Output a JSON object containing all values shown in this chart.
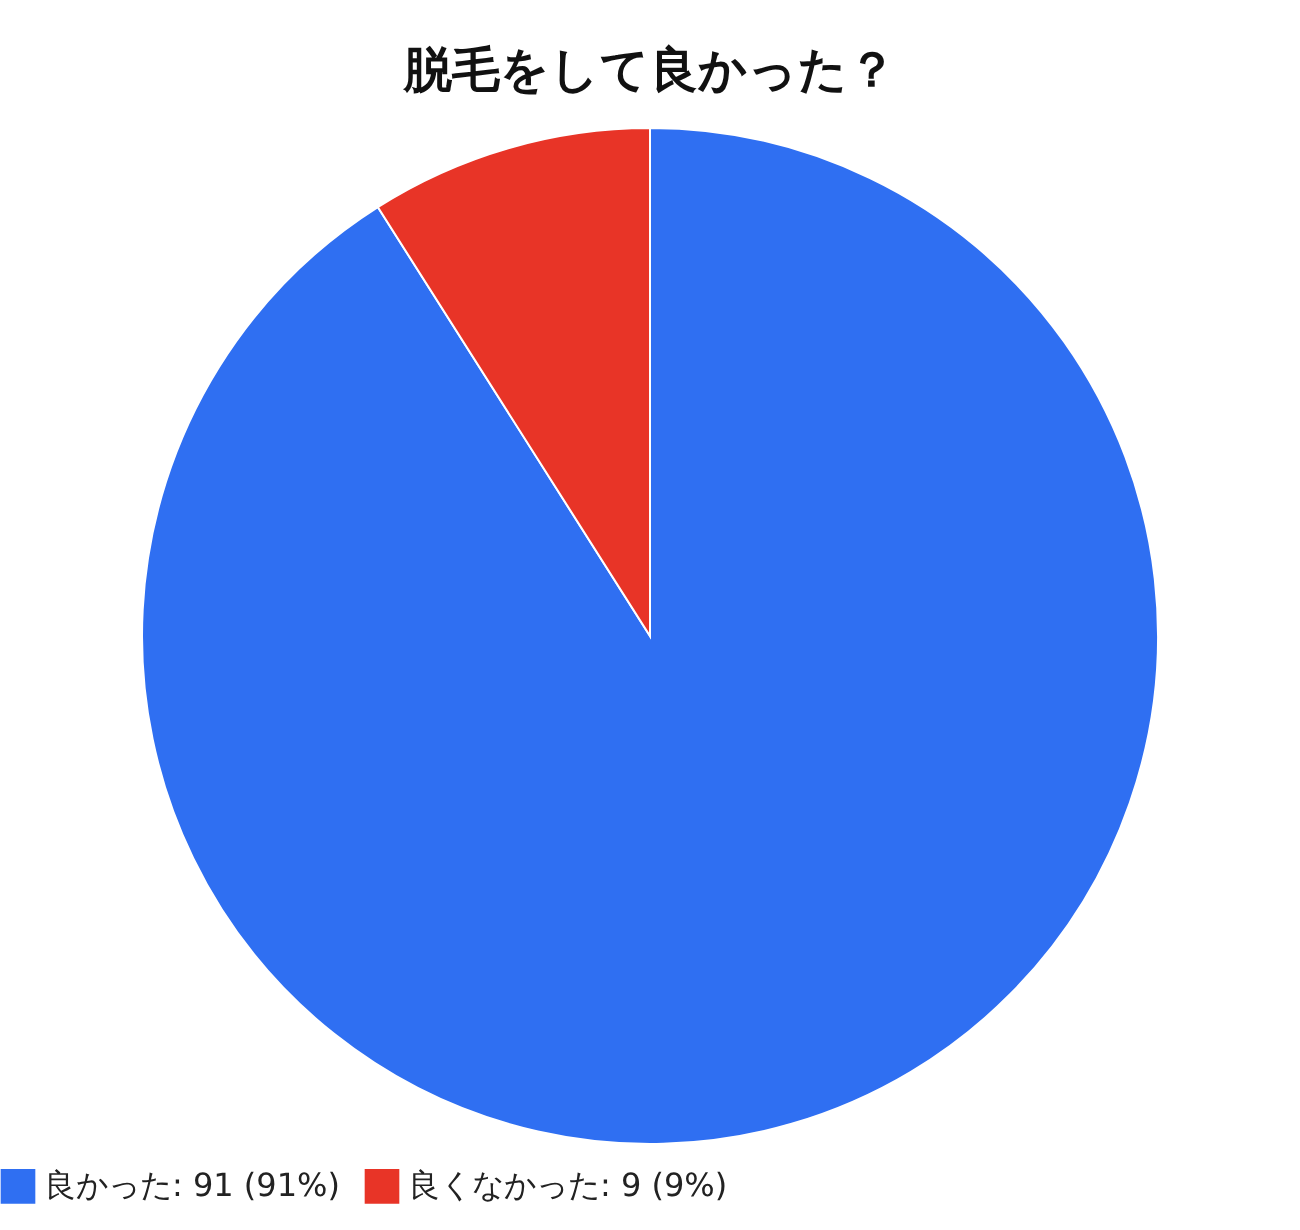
{
  "chart_data": {
    "type": "pie",
    "title": "脱毛をして良かった？",
    "categories": [
      "良かった",
      "良くなかった"
    ],
    "values": [
      91,
      9
    ],
    "colors": [
      "#2f6ff2",
      "#e83427"
    ],
    "value_labels": [
      "91 (91%)",
      "9 (9%)"
    ],
    "legend": "bottom"
  }
}
